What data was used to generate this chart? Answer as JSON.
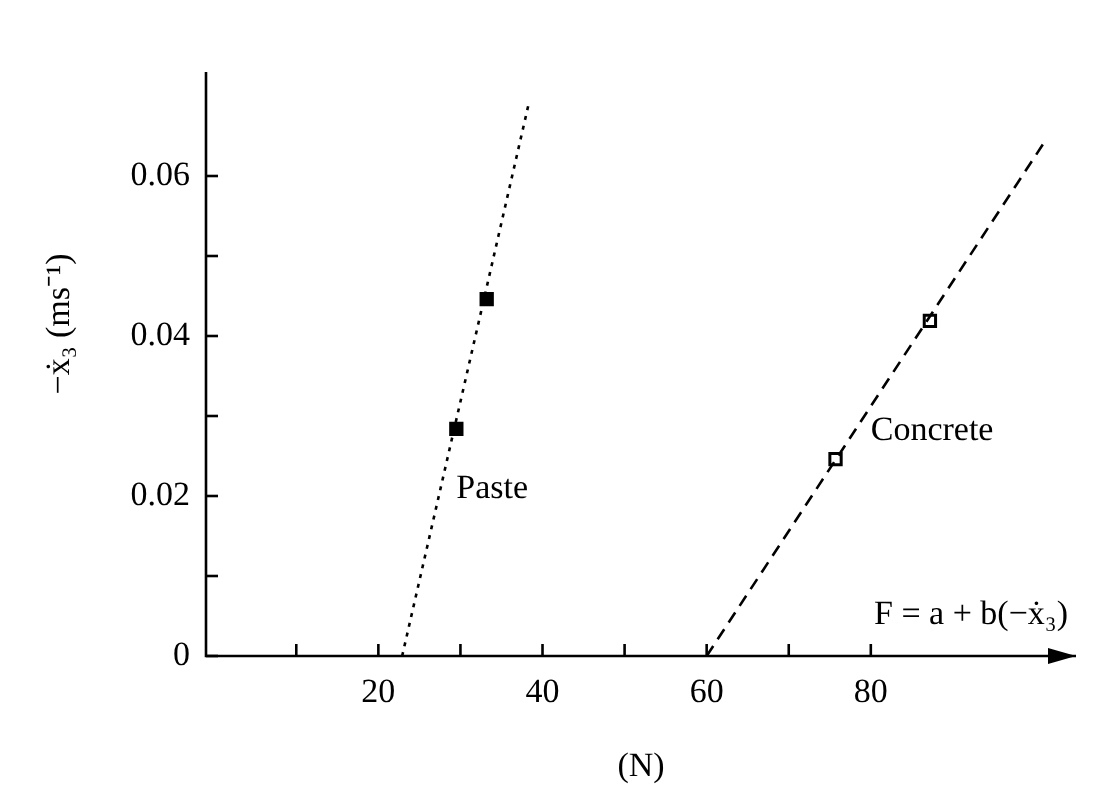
{
  "chart_data": {
    "type": "scatter",
    "xlabel": "(N)",
    "ylabel": "−ẋ₃ (ms⁻¹)",
    "xlim": [
      -1,
      105
    ],
    "ylim": [
      0,
      0.073
    ],
    "xticks": [
      {
        "value": 10,
        "label": null
      },
      20,
      {
        "value": 30,
        "label": null
      },
      40,
      {
        "value": 50,
        "label": null
      },
      60,
      {
        "value": 70,
        "label": null
      },
      80
    ],
    "yticks": [
      0,
      {
        "value": 0.01,
        "label": null
      },
      0.02,
      {
        "value": 0.03,
        "label": null
      },
      0.04,
      {
        "value": 0.05,
        "label": null
      },
      0.06
    ],
    "legend": false,
    "series": [
      {
        "type": "line",
        "name": "Paste",
        "color": "#000000",
        "line_style": "dotted",
        "marker": "none",
        "x": [
          22.9,
          38.4
        ],
        "values": [
          0,
          0.0694
        ]
      },
      {
        "type": "line",
        "name": "Concrete",
        "color": "#000000",
        "line_style": "dashed",
        "marker": "none",
        "x": [
          60,
          101
        ],
        "values": [
          0,
          0.064
        ]
      },
      {
        "color": "#000000",
        "marker": "square",
        "x": [
          29.5,
          33.2
        ],
        "values": [
          0.0284,
          0.0446
        ]
      },
      {
        "color": "#000000",
        "marker": "square",
        "x": [
          75.7,
          87.2
        ],
        "values": [
          0.0246,
          0.0419
        ]
      }
    ],
    "annotations": [
      "F = a + b(−ẋ₃)"
    ]
  }
}
